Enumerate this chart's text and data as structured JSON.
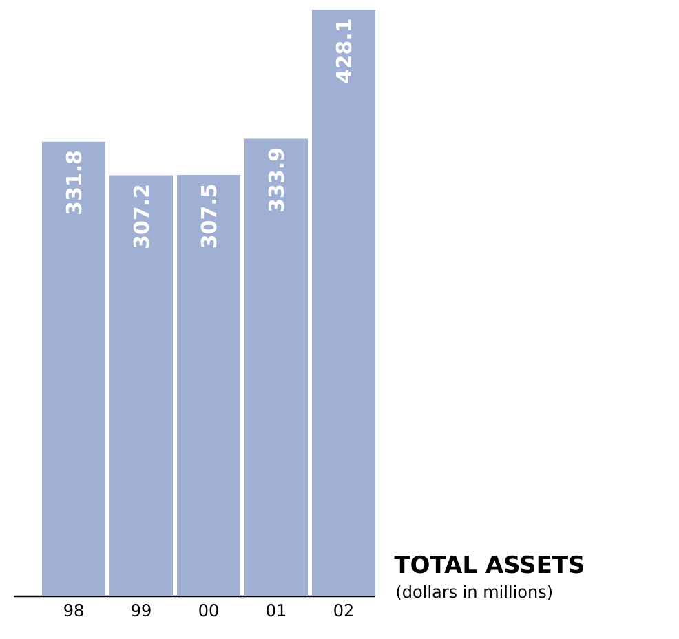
{
  "chart_data": {
    "type": "bar",
    "title": "TOTAL ASSETS",
    "subtitle": "(dollars in millions)",
    "categories": [
      "98",
      "99",
      "00",
      "01",
      "02"
    ],
    "values": [
      331.8,
      307.2,
      307.5,
      333.9,
      428.1
    ],
    "color": "#9fb0d4",
    "data_labels": true,
    "grid": false
  }
}
